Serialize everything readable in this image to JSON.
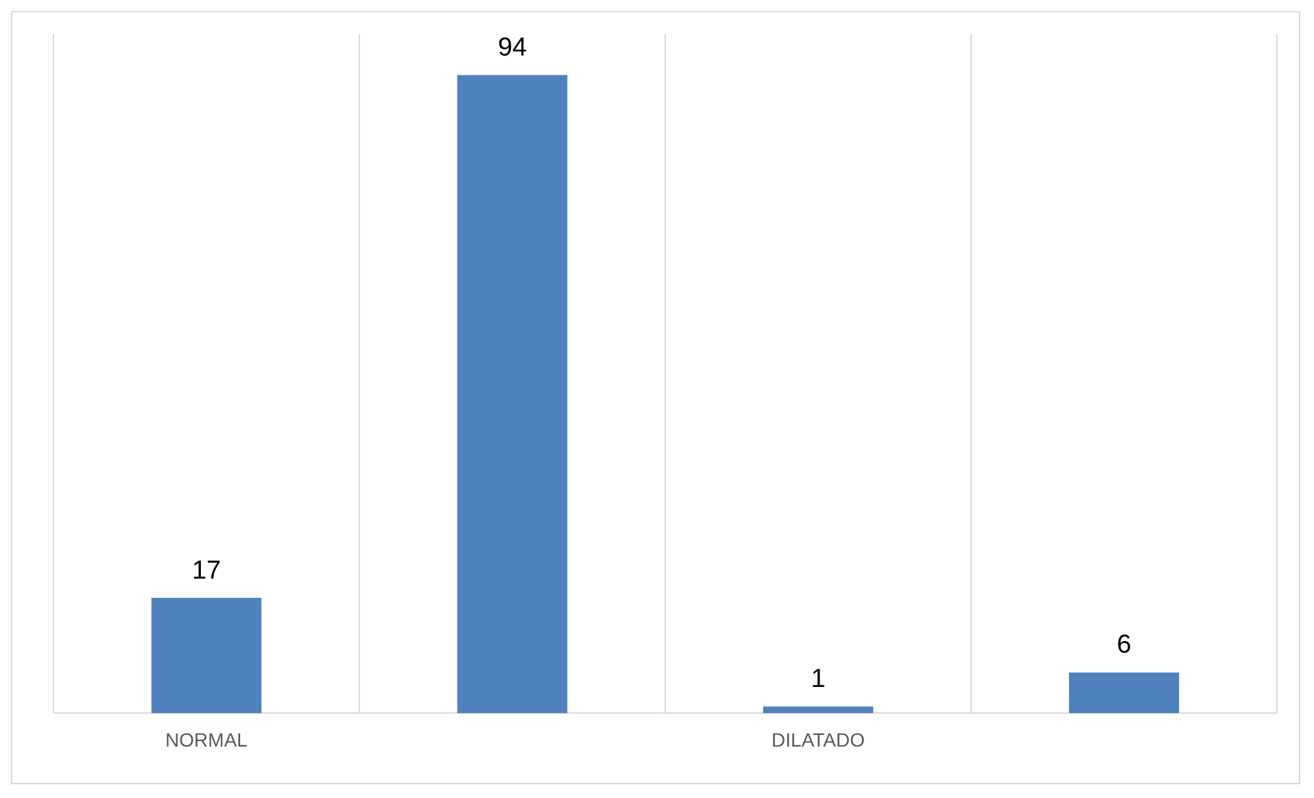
{
  "chart_data": {
    "type": "bar",
    "categories": [
      "NORMAL",
      null,
      "DILATADO",
      null
    ],
    "values": [
      17,
      94,
      1,
      6
    ],
    "color": "#4f81bd",
    "data_labels": true,
    "grid": "x",
    "legend": false
  }
}
